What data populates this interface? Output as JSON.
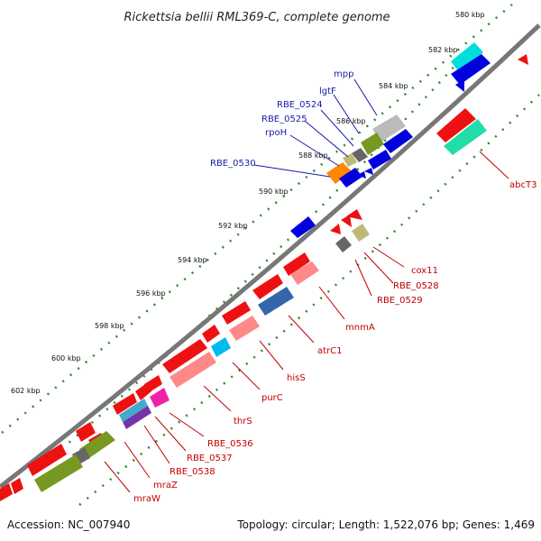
{
  "header": {
    "title": "Rickettsia bellii RML369-C, complete genome"
  },
  "footer": {
    "accession": "Accession: NC_007940",
    "summary": "Topology: circular; Length: 1,522,076 bp; Genes: 1,469"
  },
  "ticks": [
    "580 kbp",
    "582 kbp",
    "584 kbp",
    "586 kbp",
    "588 kbp",
    "590 kbp",
    "592 kbp",
    "594 kbp",
    "596 kbp",
    "598 kbp",
    "600 kbp",
    "602 kbp"
  ],
  "labels_top": [
    "mpp",
    "lgtF",
    "RBE_0524",
    "RBE_0525",
    "rpoH",
    "RBE_0530"
  ],
  "labels_bottom": [
    "abcT3",
    "cox11",
    "RBE_0528",
    "RBE_0529",
    "mnmA",
    "atrC1",
    "hisS",
    "purC",
    "thrS",
    "RBE_0536",
    "RBE_0537",
    "RBE_0538",
    "mraZ",
    "mraW"
  ],
  "colors": {
    "forward_cds": "#ee1111",
    "reverse_cds": "#0000dd",
    "backbone": "#777777",
    "tick_marks": "#2a8a2a"
  }
}
